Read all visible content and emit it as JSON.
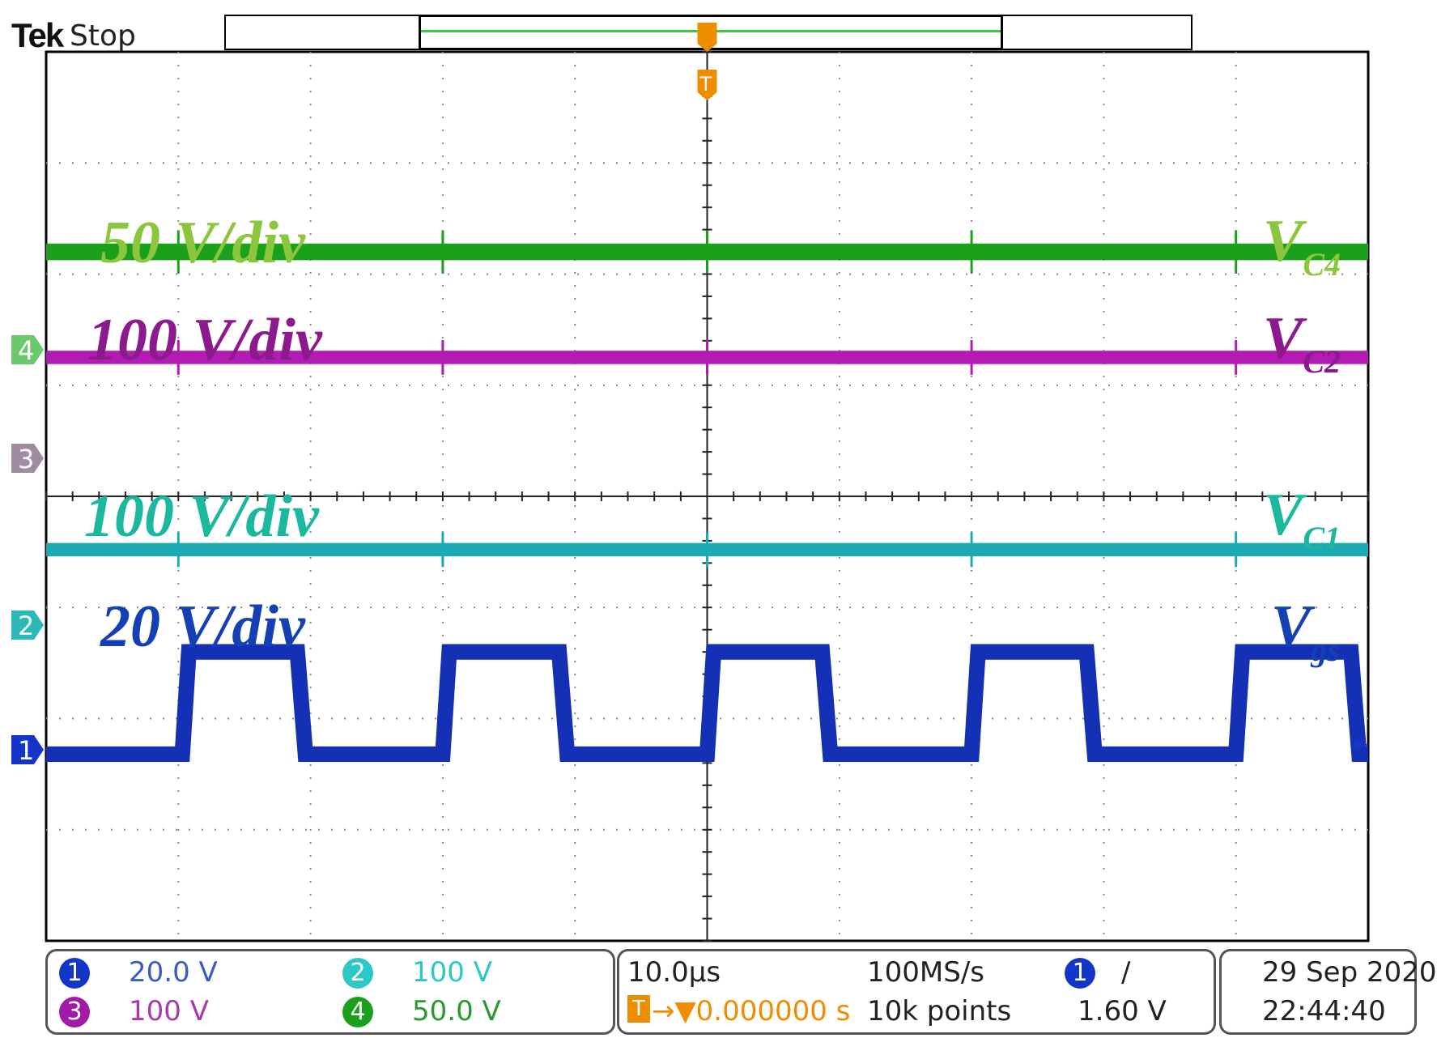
{
  "header": {
    "brand": "Tek",
    "status": "Stop"
  },
  "colors": {
    "ch1": "#1436c8",
    "ch2": "#1ab8b0",
    "ch3": "#a21aa8",
    "ch4": "#1aa01a",
    "trigger": "#f08c00",
    "grid": "#8a8a8a",
    "frame": "#000000"
  },
  "annotations": [
    {
      "key": "c4_scale",
      "text": "50 V/div",
      "color": "#8cc63c"
    },
    {
      "key": "c2_scale",
      "text": "100 V/div",
      "color": "#8c1a8c"
    },
    {
      "key": "c1_scale",
      "text": "100 V/div",
      "color": "#1ab89c"
    },
    {
      "key": "gs_scale",
      "text": "20 V/div",
      "color": "#1440b4"
    },
    {
      "key": "c4_name",
      "main": "V",
      "sub": "C4",
      "color": "#8cc63c"
    },
    {
      "key": "c2_name",
      "main": "V",
      "sub": "C2",
      "color": "#8c1a8c"
    },
    {
      "key": "c1_name",
      "main": "V",
      "sub": "C1",
      "color": "#1ab89c"
    },
    {
      "key": "gs_name",
      "main": "V",
      "sub": "gs",
      "color": "#1440b4"
    }
  ],
  "channel_markers": [
    "4",
    "3",
    "2",
    "1"
  ],
  "trigger_marker": "T",
  "info_panel": {
    "ch1": {
      "badge": "1",
      "value": "20.0 V"
    },
    "ch2": {
      "badge": "2",
      "value": "100 V"
    },
    "ch3": {
      "badge": "3",
      "value": "100 V"
    },
    "ch4": {
      "badge": "4",
      "value": "50.0 V"
    },
    "timebase": "10.0μs",
    "trigger_pos_marker": "T",
    "trigger_delay": "→▼0.000000 s",
    "sample_rate": "100MS/s",
    "record_length": "10k points",
    "trigger_source_badge": "1",
    "trigger_slope": "∕",
    "trigger_level": "1.60 V",
    "date": "29 Sep  2020",
    "time": "22:44:40"
  },
  "chart_data": {
    "type": "line",
    "x_unit": "divisions",
    "x_range": [
      0,
      10
    ],
    "y_range": [
      0,
      8
    ],
    "y_unit": "divisions",
    "grid": true,
    "series": [
      {
        "name": "V_C4",
        "channel": 4,
        "color": "#1aa01a",
        "kind": "dc",
        "level_div": 6.2,
        "thickness_div": 0.15
      },
      {
        "name": "V_C2",
        "channel": 3,
        "color": "#b41ab4",
        "kind": "dc",
        "level_div": 5.25,
        "thickness_div": 0.12
      },
      {
        "name": "V_C1",
        "channel": 2,
        "color": "#1aaab4",
        "kind": "dc",
        "level_div": 3.52,
        "thickness_div": 0.12
      },
      {
        "name": "V_gs",
        "channel": 1,
        "color": "#1430b4",
        "kind": "square",
        "low_div": 1.68,
        "high_div": 2.6,
        "thickness_div": 0.14,
        "rise_div": [
          1.03,
          3.0,
          5.0,
          7.0,
          9.0
        ],
        "fall_div": [
          1.9,
          3.88,
          5.87,
          7.87,
          9.87
        ]
      }
    ]
  }
}
